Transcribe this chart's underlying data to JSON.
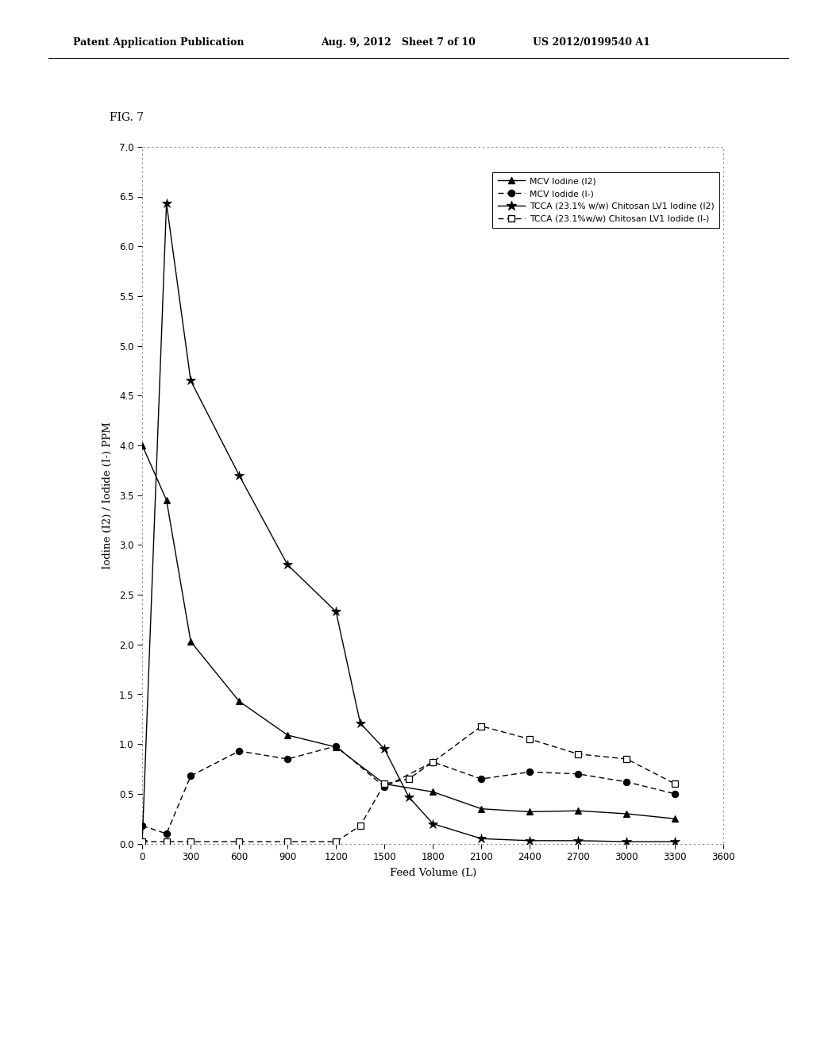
{
  "fig_label": "FIG. 7",
  "patent_left": "Patent Application Publication",
  "patent_mid": "Aug. 9, 2012   Sheet 7 of 10",
  "patent_right": "US 2012/0199540 A1",
  "xlabel": "Feed Volume (L)",
  "ylabel": "Iodine (I2) / Iodide (I-) PPM",
  "xlim": [
    0,
    3600
  ],
  "ylim": [
    0.0,
    7.0
  ],
  "xticks": [
    0,
    300,
    600,
    900,
    1200,
    1500,
    1800,
    2100,
    2400,
    2700,
    3000,
    3300,
    3600
  ],
  "yticks": [
    0.0,
    0.5,
    1.0,
    1.5,
    2.0,
    2.5,
    3.0,
    3.5,
    4.0,
    4.5,
    5.0,
    5.5,
    6.0,
    6.5,
    7.0
  ],
  "legend_labels": [
    "MCV Iodine (I2)",
    "MCV Iodide (I-)",
    "TCCA (23.1% w/w) Chitosan LV1 Iodine (I2)",
    "TCCA (23.1%w/w) Chitosan LV1 Iodide (I-)"
  ],
  "mcv_iodine_x": [
    0,
    150,
    300,
    600,
    900,
    1200,
    1500,
    1800,
    2100,
    2400,
    2700,
    3000,
    3300
  ],
  "mcv_iodine_y": [
    4.0,
    3.45,
    2.03,
    1.43,
    1.09,
    0.97,
    0.6,
    0.52,
    0.35,
    0.32,
    0.33,
    0.3,
    0.25
  ],
  "mcv_iodide_x": [
    0,
    150,
    300,
    600,
    900,
    1200,
    1500,
    1800,
    2100,
    2400,
    2700,
    3000,
    3300
  ],
  "mcv_iodide_y": [
    0.18,
    0.1,
    0.68,
    0.93,
    0.85,
    0.98,
    0.57,
    0.82,
    0.65,
    0.72,
    0.7,
    0.62,
    0.5
  ],
  "tcca_iodine_x": [
    0,
    150,
    300,
    600,
    900,
    1200,
    1350,
    1500,
    1650,
    1800,
    2100,
    2400,
    2700,
    3000,
    3300
  ],
  "tcca_iodine_y": [
    0.02,
    6.43,
    4.65,
    3.7,
    2.8,
    2.33,
    1.21,
    0.95,
    0.47,
    0.2,
    0.05,
    0.03,
    0.03,
    0.02,
    0.02
  ],
  "tcca_iodide_x": [
    0,
    150,
    300,
    600,
    900,
    1200,
    1350,
    1500,
    1650,
    1800,
    2100,
    2400,
    2700,
    3000,
    3300
  ],
  "tcca_iodide_y": [
    0.02,
    0.02,
    0.02,
    0.02,
    0.02,
    0.02,
    0.18,
    0.6,
    0.65,
    0.82,
    1.18,
    1.05,
    0.9,
    0.85,
    0.6
  ],
  "bg": "#ffffff"
}
